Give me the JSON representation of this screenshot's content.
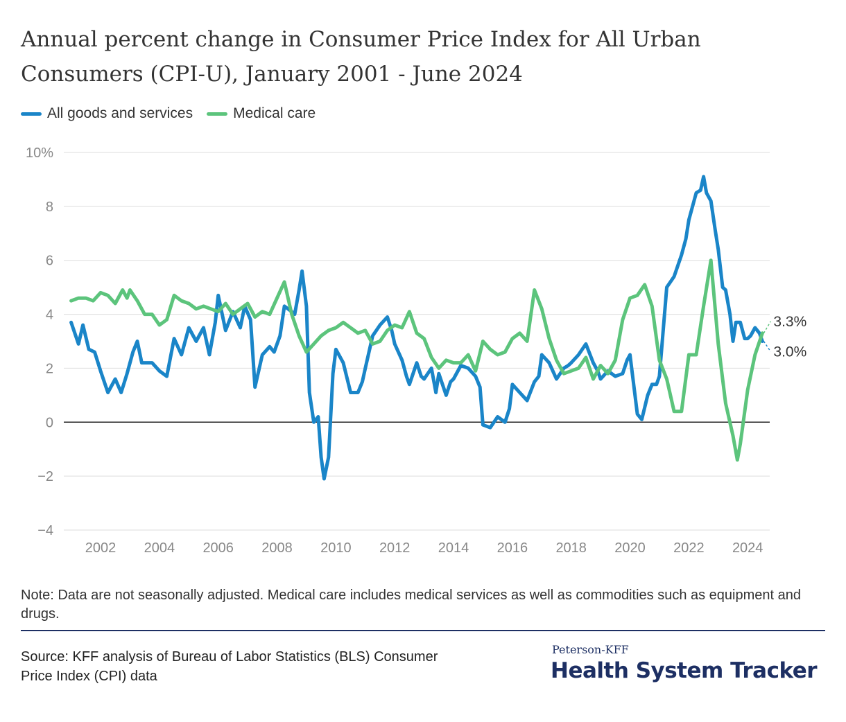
{
  "header": {
    "title": "Annual percent change in Consumer Price Index for All Urban Consumers (CPI-U), January 2001 - June 2024"
  },
  "legend": [
    {
      "label": "All goods and services",
      "color": "#1a85c8"
    },
    {
      "label": "Medical care",
      "color": "#5cc47c"
    }
  ],
  "chart_data": {
    "type": "line",
    "title": "Annual percent change in Consumer Price Index for All Urban Consumers (CPI-U), January 2001 - June 2024",
    "xlabel": "",
    "ylabel": "",
    "xlim": [
      2000.75,
      2024.75
    ],
    "ylim": [
      -4,
      10
    ],
    "x_ticks": [
      2002,
      2004,
      2006,
      2008,
      2010,
      2012,
      2014,
      2016,
      2018,
      2020,
      2022,
      2024
    ],
    "y_ticks": [
      {
        "value": 10,
        "label": "10%"
      },
      {
        "value": 8,
        "label": "8"
      },
      {
        "value": 6,
        "label": "6"
      },
      {
        "value": 4,
        "label": "4"
      },
      {
        "value": 2,
        "label": "2"
      },
      {
        "value": 0,
        "label": "0"
      },
      {
        "value": -2,
        "label": "−2"
      },
      {
        "value": -4,
        "label": "−4"
      }
    ],
    "grid": "horizontal",
    "legend_position": "top-left",
    "series": [
      {
        "name": "All goods and services",
        "color": "#1a85c8",
        "end_label": "3.0%",
        "points": [
          [
            2001.0,
            3.7
          ],
          [
            2001.25,
            2.9
          ],
          [
            2001.4,
            3.6
          ],
          [
            2001.6,
            2.7
          ],
          [
            2001.8,
            2.6
          ],
          [
            2002.0,
            1.9
          ],
          [
            2002.25,
            1.1
          ],
          [
            2002.5,
            1.6
          ],
          [
            2002.7,
            1.1
          ],
          [
            2002.9,
            1.8
          ],
          [
            2003.1,
            2.6
          ],
          [
            2003.25,
            3.0
          ],
          [
            2003.4,
            2.2
          ],
          [
            2003.75,
            2.2
          ],
          [
            2004.0,
            1.9
          ],
          [
            2004.25,
            1.7
          ],
          [
            2004.5,
            3.1
          ],
          [
            2004.75,
            2.5
          ],
          [
            2005.0,
            3.5
          ],
          [
            2005.25,
            3.0
          ],
          [
            2005.5,
            3.5
          ],
          [
            2005.7,
            2.5
          ],
          [
            2005.9,
            3.7
          ],
          [
            2006.0,
            4.7
          ],
          [
            2006.25,
            3.4
          ],
          [
            2006.5,
            4.1
          ],
          [
            2006.75,
            3.5
          ],
          [
            2006.9,
            4.3
          ],
          [
            2007.1,
            3.8
          ],
          [
            2007.25,
            1.3
          ],
          [
            2007.5,
            2.5
          ],
          [
            2007.75,
            2.8
          ],
          [
            2007.9,
            2.6
          ],
          [
            2008.1,
            3.2
          ],
          [
            2008.25,
            4.3
          ],
          [
            2008.5,
            4.1
          ],
          [
            2008.6,
            4.0
          ],
          [
            2008.75,
            4.9
          ],
          [
            2008.85,
            5.6
          ],
          [
            2009.0,
            4.3
          ],
          [
            2009.1,
            1.1
          ],
          [
            2009.25,
            0.0
          ],
          [
            2009.4,
            0.2
          ],
          [
            2009.5,
            -1.3
          ],
          [
            2009.6,
            -2.1
          ],
          [
            2009.75,
            -1.3
          ],
          [
            2009.9,
            1.8
          ],
          [
            2010.0,
            2.7
          ],
          [
            2010.25,
            2.2
          ],
          [
            2010.5,
            1.1
          ],
          [
            2010.75,
            1.1
          ],
          [
            2010.9,
            1.5
          ],
          [
            2011.0,
            2.0
          ],
          [
            2011.25,
            3.2
          ],
          [
            2011.5,
            3.6
          ],
          [
            2011.75,
            3.9
          ],
          [
            2011.9,
            3.4
          ],
          [
            2012.0,
            2.9
          ],
          [
            2012.25,
            2.3
          ],
          [
            2012.4,
            1.7
          ],
          [
            2012.5,
            1.4
          ],
          [
            2012.75,
            2.2
          ],
          [
            2012.9,
            1.7
          ],
          [
            2013.0,
            1.6
          ],
          [
            2013.25,
            2.0
          ],
          [
            2013.4,
            1.1
          ],
          [
            2013.5,
            1.8
          ],
          [
            2013.75,
            1.0
          ],
          [
            2013.9,
            1.5
          ],
          [
            2014.0,
            1.6
          ],
          [
            2014.25,
            2.1
          ],
          [
            2014.5,
            2.0
          ],
          [
            2014.75,
            1.7
          ],
          [
            2014.9,
            1.3
          ],
          [
            2015.0,
            -0.1
          ],
          [
            2015.25,
            -0.2
          ],
          [
            2015.5,
            0.2
          ],
          [
            2015.75,
            0.0
          ],
          [
            2015.9,
            0.5
          ],
          [
            2016.0,
            1.4
          ],
          [
            2016.25,
            1.1
          ],
          [
            2016.5,
            0.8
          ],
          [
            2016.75,
            1.5
          ],
          [
            2016.9,
            1.7
          ],
          [
            2017.0,
            2.5
          ],
          [
            2017.25,
            2.2
          ],
          [
            2017.5,
            1.6
          ],
          [
            2017.75,
            2.0
          ],
          [
            2017.9,
            2.1
          ],
          [
            2018.0,
            2.2
          ],
          [
            2018.25,
            2.5
          ],
          [
            2018.5,
            2.9
          ],
          [
            2018.75,
            2.2
          ],
          [
            2018.9,
            1.9
          ],
          [
            2019.0,
            1.6
          ],
          [
            2019.25,
            1.9
          ],
          [
            2019.5,
            1.7
          ],
          [
            2019.75,
            1.8
          ],
          [
            2019.9,
            2.3
          ],
          [
            2020.0,
            2.5
          ],
          [
            2020.25,
            0.3
          ],
          [
            2020.4,
            0.1
          ],
          [
            2020.6,
            1.0
          ],
          [
            2020.75,
            1.4
          ],
          [
            2020.9,
            1.4
          ],
          [
            2021.0,
            1.7
          ],
          [
            2021.25,
            5.0
          ],
          [
            2021.5,
            5.4
          ],
          [
            2021.75,
            6.2
          ],
          [
            2021.9,
            6.8
          ],
          [
            2022.0,
            7.5
          ],
          [
            2022.25,
            8.5
          ],
          [
            2022.4,
            8.6
          ],
          [
            2022.5,
            9.1
          ],
          [
            2022.6,
            8.5
          ],
          [
            2022.75,
            8.2
          ],
          [
            2022.9,
            7.1
          ],
          [
            2023.0,
            6.4
          ],
          [
            2023.15,
            5.0
          ],
          [
            2023.25,
            4.9
          ],
          [
            2023.4,
            4.0
          ],
          [
            2023.5,
            3.0
          ],
          [
            2023.6,
            3.7
          ],
          [
            2023.75,
            3.7
          ],
          [
            2023.9,
            3.1
          ],
          [
            2024.0,
            3.1
          ],
          [
            2024.1,
            3.2
          ],
          [
            2024.25,
            3.5
          ],
          [
            2024.4,
            3.3
          ],
          [
            2024.5,
            3.0
          ]
        ]
      },
      {
        "name": "Medical care",
        "color": "#5cc47c",
        "end_label": "3.3%",
        "points": [
          [
            2001.0,
            4.5
          ],
          [
            2001.25,
            4.6
          ],
          [
            2001.5,
            4.6
          ],
          [
            2001.75,
            4.5
          ],
          [
            2002.0,
            4.8
          ],
          [
            2002.25,
            4.7
          ],
          [
            2002.5,
            4.4
          ],
          [
            2002.75,
            4.9
          ],
          [
            2002.9,
            4.6
          ],
          [
            2003.0,
            4.9
          ],
          [
            2003.25,
            4.5
          ],
          [
            2003.5,
            4.0
          ],
          [
            2003.75,
            4.0
          ],
          [
            2004.0,
            3.6
          ],
          [
            2004.25,
            3.8
          ],
          [
            2004.5,
            4.7
          ],
          [
            2004.75,
            4.5
          ],
          [
            2005.0,
            4.4
          ],
          [
            2005.25,
            4.2
          ],
          [
            2005.5,
            4.3
          ],
          [
            2005.75,
            4.2
          ],
          [
            2006.0,
            4.1
          ],
          [
            2006.25,
            4.4
          ],
          [
            2006.5,
            4.0
          ],
          [
            2006.75,
            4.2
          ],
          [
            2007.0,
            4.4
          ],
          [
            2007.25,
            3.9
          ],
          [
            2007.5,
            4.1
          ],
          [
            2007.75,
            4.0
          ],
          [
            2008.0,
            4.6
          ],
          [
            2008.25,
            5.2
          ],
          [
            2008.5,
            4.0
          ],
          [
            2008.75,
            3.2
          ],
          [
            2009.0,
            2.6
          ],
          [
            2009.25,
            2.9
          ],
          [
            2009.5,
            3.2
          ],
          [
            2009.75,
            3.4
          ],
          [
            2010.0,
            3.5
          ],
          [
            2010.25,
            3.7
          ],
          [
            2010.5,
            3.5
          ],
          [
            2010.75,
            3.3
          ],
          [
            2011.0,
            3.4
          ],
          [
            2011.25,
            2.9
          ],
          [
            2011.5,
            3.0
          ],
          [
            2011.75,
            3.4
          ],
          [
            2012.0,
            3.6
          ],
          [
            2012.25,
            3.5
          ],
          [
            2012.5,
            4.1
          ],
          [
            2012.75,
            3.3
          ],
          [
            2013.0,
            3.1
          ],
          [
            2013.25,
            2.4
          ],
          [
            2013.5,
            2.0
          ],
          [
            2013.75,
            2.3
          ],
          [
            2014.0,
            2.2
          ],
          [
            2014.25,
            2.2
          ],
          [
            2014.5,
            2.5
          ],
          [
            2014.75,
            1.9
          ],
          [
            2015.0,
            3.0
          ],
          [
            2015.25,
            2.7
          ],
          [
            2015.5,
            2.5
          ],
          [
            2015.75,
            2.6
          ],
          [
            2016.0,
            3.1
          ],
          [
            2016.25,
            3.3
          ],
          [
            2016.5,
            3.0
          ],
          [
            2016.75,
            4.9
          ],
          [
            2017.0,
            4.2
          ],
          [
            2017.25,
            3.1
          ],
          [
            2017.5,
            2.3
          ],
          [
            2017.75,
            1.8
          ],
          [
            2018.0,
            1.9
          ],
          [
            2018.25,
            2.0
          ],
          [
            2018.5,
            2.4
          ],
          [
            2018.75,
            1.6
          ],
          [
            2019.0,
            2.1
          ],
          [
            2019.25,
            1.8
          ],
          [
            2019.5,
            2.3
          ],
          [
            2019.75,
            3.8
          ],
          [
            2020.0,
            4.6
          ],
          [
            2020.25,
            4.7
          ],
          [
            2020.5,
            5.1
          ],
          [
            2020.75,
            4.3
          ],
          [
            2021.0,
            2.3
          ],
          [
            2021.25,
            1.6
          ],
          [
            2021.5,
            0.4
          ],
          [
            2021.75,
            0.4
          ],
          [
            2022.0,
            2.5
          ],
          [
            2022.25,
            2.5
          ],
          [
            2022.5,
            4.3
          ],
          [
            2022.75,
            6.0
          ],
          [
            2023.0,
            2.9
          ],
          [
            2023.25,
            0.7
          ],
          [
            2023.5,
            -0.5
          ],
          [
            2023.65,
            -1.4
          ],
          [
            2023.75,
            -0.8
          ],
          [
            2024.0,
            1.2
          ],
          [
            2024.25,
            2.5
          ],
          [
            2024.5,
            3.3
          ]
        ]
      }
    ]
  },
  "footer": {
    "note": "Note: Data are not seasonally adjusted. Medical care includes medical services as well as commodities such as equipment and drugs.",
    "source": "Source: KFF analysis of Bureau of Labor Statistics (BLS) Consumer Price Index (CPI) data",
    "brand_small": "Peterson-KFF",
    "brand_big": "Health System Tracker"
  }
}
